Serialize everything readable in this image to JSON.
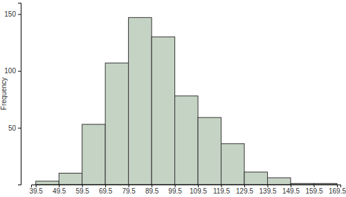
{
  "chart_data": {
    "type": "histogram",
    "y_label": "Frequency",
    "bins": [
      39.5,
      49.5,
      59.5,
      69.5,
      79.5,
      89.5,
      99.5,
      109.5,
      119.5,
      129.5,
      139.5,
      149.5,
      159.5,
      169.5
    ],
    "values": [
      3,
      10,
      53,
      107,
      147,
      130,
      78,
      59,
      36,
      11,
      6,
      1,
      1
    ],
    "color": "#c5d3c4",
    "xlim": [
      37.5,
      171
    ],
    "xticks": [
      39.5,
      49.5,
      59.5,
      69.5,
      79.5,
      89.5,
      99.5,
      109.5,
      119.5,
      129.5,
      139.5,
      149.5,
      159.5,
      169.5
    ],
    "ylim": [
      0,
      160
    ],
    "yticks": [
      50,
      100,
      150
    ],
    "grid": false
  }
}
